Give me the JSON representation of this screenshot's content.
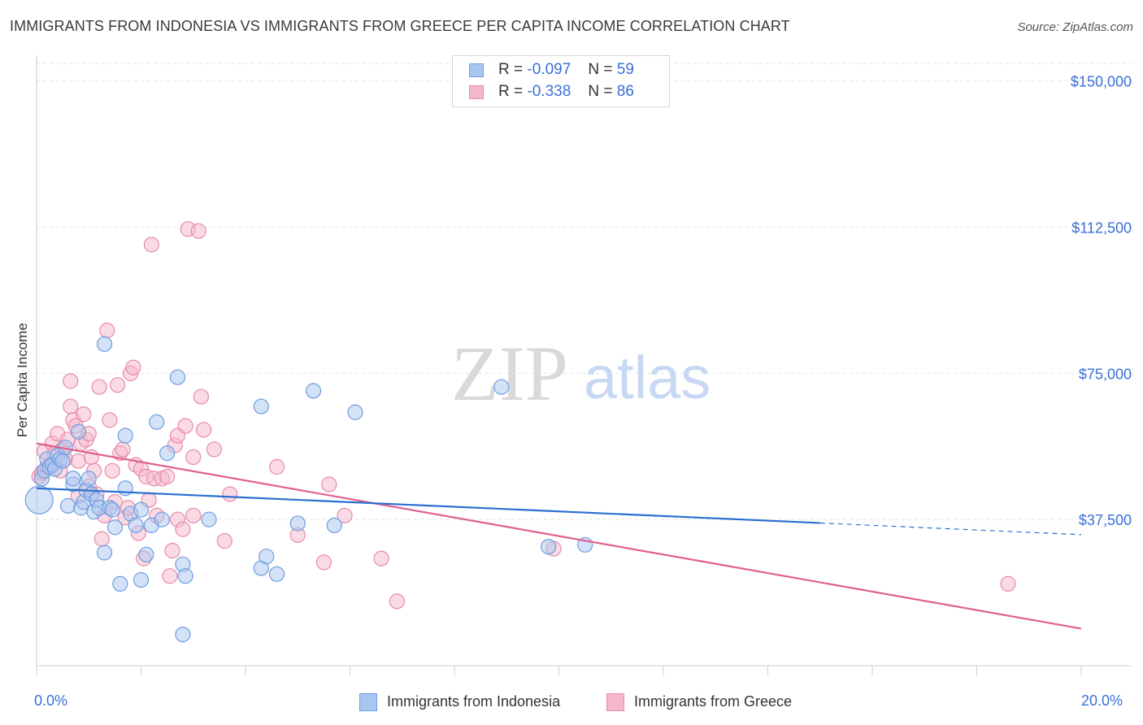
{
  "title": "IMMIGRANTS FROM INDONESIA VS IMMIGRANTS FROM GREECE PER CAPITA INCOME CORRELATION CHART",
  "source": "Source: ZipAtlas.com",
  "watermark": {
    "zip": "ZIP",
    "atlas": "atlas"
  },
  "colors": {
    "indonesia_fill": "#a9c6f0",
    "indonesia_stroke": "#6e9de0",
    "indonesia_line": "#2a6fd0",
    "greece_fill": "#f5b7cb",
    "greece_stroke": "#e88aa8",
    "greece_line": "#e0608e",
    "axis_label": "#3a6fd8"
  },
  "stats": [
    {
      "r_label": "R =",
      "r": "-0.097",
      "n_label": "N =",
      "n": "59"
    },
    {
      "r_label": "R =",
      "r": "-0.338",
      "n_label": "N =",
      "n": "86"
    }
  ],
  "chart_data": {
    "type": "scatter",
    "title": "IMMIGRANTS FROM INDONESIA VS IMMIGRANTS FROM GREECE PER CAPITA INCOME CORRELATION CHART",
    "xlabel": "",
    "ylabel": "Per Capita Income",
    "xlim": [
      0,
      20
    ],
    "ylim": [
      0,
      157000
    ],
    "x_tick_labels": [
      "0.0%",
      "20.0%"
    ],
    "y_ticks": [
      37500,
      75000,
      112500,
      150000
    ],
    "y_tick_labels": [
      "$37,500",
      "$75,000",
      "$112,500",
      "$150,000"
    ],
    "legend_position": "bottom-center",
    "series": [
      {
        "name": "Immigrants from Indonesia",
        "trend": {
          "x0": 0.0,
          "y0": 45500,
          "x1": 15.0,
          "y1": 36600,
          "dashed_to_x": 20.0,
          "dashed_to_y": 33600
        },
        "points": [
          [
            0.05,
            42500
          ],
          [
            0.1,
            48000
          ],
          [
            0.15,
            50000
          ],
          [
            0.2,
            53000
          ],
          [
            0.25,
            51000
          ],
          [
            0.3,
            51500
          ],
          [
            0.35,
            50500
          ],
          [
            0.4,
            54000
          ],
          [
            0.45,
            53000
          ],
          [
            0.5,
            52500
          ],
          [
            0.55,
            56000
          ],
          [
            0.6,
            41000
          ],
          [
            0.7,
            46500
          ],
          [
            0.7,
            48000
          ],
          [
            0.8,
            60000
          ],
          [
            0.85,
            40500
          ],
          [
            0.9,
            42000
          ],
          [
            0.95,
            45000
          ],
          [
            1.0,
            48000
          ],
          [
            1.05,
            44000
          ],
          [
            1.1,
            39500
          ],
          [
            1.15,
            42500
          ],
          [
            1.2,
            40500
          ],
          [
            1.3,
            82500
          ],
          [
            1.3,
            29000
          ],
          [
            1.4,
            40500
          ],
          [
            1.45,
            40000
          ],
          [
            1.5,
            35500
          ],
          [
            1.6,
            21000
          ],
          [
            1.7,
            59000
          ],
          [
            1.7,
            45500
          ],
          [
            1.8,
            39000
          ],
          [
            1.9,
            36000
          ],
          [
            2.0,
            22000
          ],
          [
            2.0,
            40000
          ],
          [
            2.1,
            28500
          ],
          [
            2.2,
            36000
          ],
          [
            2.3,
            62500
          ],
          [
            2.4,
            37500
          ],
          [
            2.5,
            54500
          ],
          [
            2.7,
            74000
          ],
          [
            2.8,
            26000
          ],
          [
            2.8,
            8000
          ],
          [
            2.85,
            23000
          ],
          [
            3.3,
            37500
          ],
          [
            4.3,
            66500
          ],
          [
            4.3,
            25000
          ],
          [
            4.4,
            28000
          ],
          [
            4.6,
            23500
          ],
          [
            5.0,
            36500
          ],
          [
            5.3,
            70500
          ],
          [
            5.7,
            36000
          ],
          [
            6.1,
            65000
          ],
          [
            8.9,
            71500
          ],
          [
            9.8,
            30500
          ],
          [
            10.5,
            31000
          ]
        ]
      },
      {
        "name": "Immigrants from Greece",
        "trend": {
          "x0": 0.0,
          "y0": 57000,
          "x1": 20.0,
          "y1": 9500
        },
        "points": [
          [
            0.05,
            48500
          ],
          [
            0.1,
            49500
          ],
          [
            0.15,
            55000
          ],
          [
            0.2,
            51000
          ],
          [
            0.3,
            57000
          ],
          [
            0.35,
            54500
          ],
          [
            0.4,
            59500
          ],
          [
            0.45,
            50000
          ],
          [
            0.5,
            55500
          ],
          [
            0.55,
            53000
          ],
          [
            0.6,
            58000
          ],
          [
            0.65,
            73000
          ],
          [
            0.65,
            66500
          ],
          [
            0.7,
            63000
          ],
          [
            0.75,
            61500
          ],
          [
            0.8,
            52500
          ],
          [
            0.8,
            43500
          ],
          [
            0.85,
            57000
          ],
          [
            0.9,
            64500
          ],
          [
            0.95,
            58000
          ],
          [
            1.0,
            59500
          ],
          [
            1.0,
            46000
          ],
          [
            1.05,
            53500
          ],
          [
            1.1,
            50000
          ],
          [
            1.15,
            44000
          ],
          [
            1.2,
            71500
          ],
          [
            1.25,
            32500
          ],
          [
            1.3,
            38500
          ],
          [
            1.35,
            86000
          ],
          [
            1.4,
            63000
          ],
          [
            1.45,
            50000
          ],
          [
            1.5,
            42000
          ],
          [
            1.55,
            72000
          ],
          [
            1.6,
            54500
          ],
          [
            1.65,
            55500
          ],
          [
            1.7,
            38000
          ],
          [
            1.75,
            40500
          ],
          [
            1.8,
            75000
          ],
          [
            1.85,
            76500
          ],
          [
            1.9,
            51500
          ],
          [
            1.95,
            34000
          ],
          [
            2.0,
            50500
          ],
          [
            2.05,
            27500
          ],
          [
            2.1,
            48500
          ],
          [
            2.15,
            42500
          ],
          [
            2.2,
            108000
          ],
          [
            2.25,
            48000
          ],
          [
            2.3,
            38500
          ],
          [
            2.4,
            48000
          ],
          [
            2.5,
            48500
          ],
          [
            2.55,
            23000
          ],
          [
            2.6,
            29500
          ],
          [
            2.65,
            56500
          ],
          [
            2.7,
            59000
          ],
          [
            2.7,
            37500
          ],
          [
            2.8,
            35000
          ],
          [
            2.85,
            61500
          ],
          [
            2.9,
            112000
          ],
          [
            3.0,
            38500
          ],
          [
            3.0,
            53500
          ],
          [
            3.1,
            111500
          ],
          [
            3.15,
            69000
          ],
          [
            3.2,
            60500
          ],
          [
            3.4,
            55500
          ],
          [
            3.6,
            32000
          ],
          [
            3.7,
            44000
          ],
          [
            4.6,
            51000
          ],
          [
            5.0,
            33500
          ],
          [
            5.5,
            26500
          ],
          [
            5.6,
            46500
          ],
          [
            5.9,
            38500
          ],
          [
            6.6,
            27500
          ],
          [
            6.9,
            16500
          ],
          [
            9.9,
            30000
          ],
          [
            18.6,
            21000
          ]
        ]
      }
    ]
  }
}
